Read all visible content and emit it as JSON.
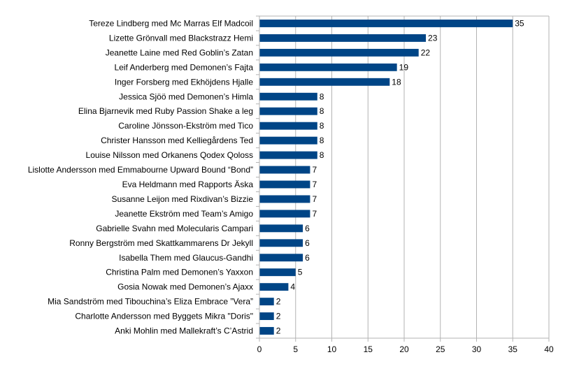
{
  "chart_data": {
    "type": "bar",
    "orientation": "horizontal",
    "title": "",
    "xlabel": "",
    "ylabel": "",
    "xlim": [
      0,
      40
    ],
    "x_ticks": [
      "0",
      "5",
      "10",
      "15",
      "20",
      "25",
      "30",
      "35",
      "40"
    ],
    "grid": true,
    "bar_color": "#004586",
    "categories": [
      "Tereze Lindberg med Mc Marras Elf Madcoil",
      "Lizette Grönvall med Blackstrazz Hemi",
      "Jeanette Laine med Red Goblin’s Zatan",
      "Leif Anderberg med Demonen’s Fajta",
      "Inger Forsberg med Ekhöjdens Hjalle",
      "Jessica Sjöö med Demonen’s Himla",
      "Elina Bjarnevik med Ruby Passion Shake a leg",
      "Caroline Jönsson-Ekström med Tico",
      "Christer Hansson med Kelliegårdens Ted",
      "Louise Nilsson med Orkanens Qodex Qoloss",
      "Lislotte Andersson med Emmabourne Upward Bound “Bond”",
      "Eva Heldmann med Rapports Äska",
      "Susanne Leijon med Rixdivan’s Bizzie",
      "Jeanette Ekström med Team’s Amigo",
      "Gabrielle Svahn med Molecularis Campari",
      "Ronny Bergström med Skattkammarens Dr Jekyll",
      "Isabella Them med Glaucus-Gandhi",
      "Christina Palm med Demonen’s Yaxxon",
      "Gosia Nowak med Demonen’s Ajaxx",
      "Mia Sandström med Tibouchina’s Eliza Embrace ”Vera”",
      "Charlotte Andersson med Byggets Mikra \"Doris\"",
      "Anki Mohlin med Mallekraft’s C’Astrid"
    ],
    "values": [
      35,
      23,
      22,
      19,
      18,
      8,
      8,
      8,
      8,
      8,
      7,
      7,
      7,
      7,
      6,
      6,
      6,
      5,
      4,
      2,
      2,
      2
    ]
  }
}
